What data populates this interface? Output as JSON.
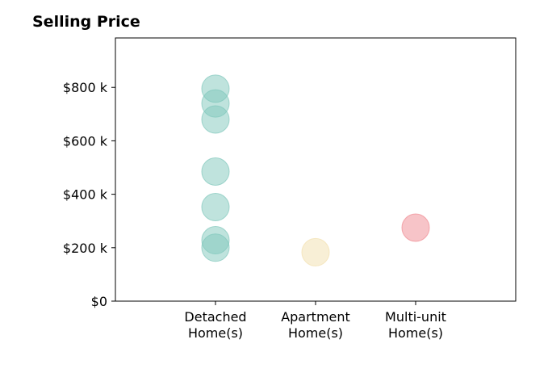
{
  "chart_data": {
    "type": "scatter",
    "title": "Selling Price",
    "xlabel": "",
    "ylabel": "",
    "ylim": [
      0,
      985
    ],
    "yticks": [
      {
        "value": 0,
        "label": "$0"
      },
      {
        "value": 200,
        "label": "$200 k"
      },
      {
        "value": 400,
        "label": "$400 k"
      },
      {
        "value": 600,
        "label": "$600 k"
      },
      {
        "value": 800,
        "label": "$800 k"
      }
    ],
    "categories": [
      {
        "lines": [
          "Detached",
          "Home(s)"
        ]
      },
      {
        "lines": [
          "Apartment",
          "Home(s)"
        ]
      },
      {
        "lines": [
          "Multi-unit",
          "Home(s)"
        ]
      }
    ],
    "xlim": [
      -1,
      3
    ],
    "series": [
      {
        "category_index": 0,
        "color": "#80c8bc",
        "values": [
          795,
          740,
          680,
          485,
          352,
          228,
          200
        ]
      },
      {
        "category_index": 1,
        "color": "#f2dfae",
        "values": [
          183
        ]
      },
      {
        "category_index": 2,
        "color": "#f08a92",
        "values": [
          275
        ]
      }
    ],
    "grid": false
  }
}
